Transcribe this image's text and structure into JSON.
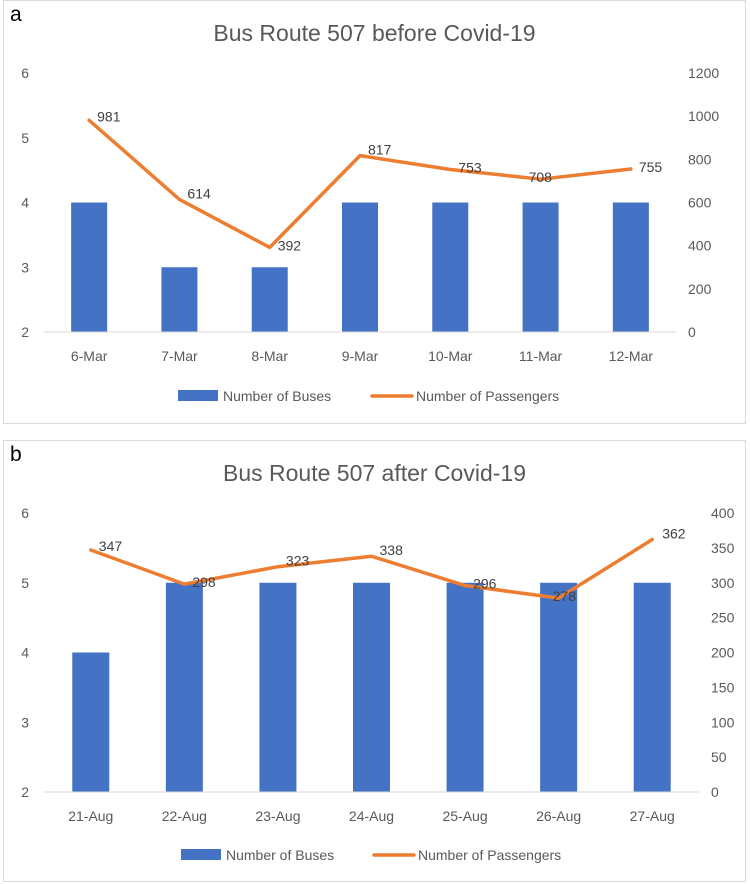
{
  "chart_data": [
    {
      "type": "bar",
      "panel_letter": "a",
      "title": "Bus Route 507 before Covid-19",
      "categories": [
        "6-Mar",
        "7-Mar",
        "8-Mar",
        "9-Mar",
        "10-Mar",
        "11-Mar",
        "12-Mar"
      ],
      "left_axis": {
        "ylim": [
          2,
          6
        ],
        "ticks": [
          2,
          3,
          4,
          5,
          6
        ]
      },
      "right_axis": {
        "ylim": [
          0,
          1200
        ],
        "ticks": [
          0,
          200,
          400,
          600,
          800,
          1000,
          1200
        ]
      },
      "series": [
        {
          "name": "Number of Buses",
          "kind": "bar",
          "axis": "left",
          "color": "#4472c4",
          "values": [
            4,
            3,
            3,
            4,
            4,
            4,
            4
          ]
        },
        {
          "name": "Number of Passengers",
          "kind": "line",
          "axis": "right",
          "color": "#ed7d31",
          "values": [
            981,
            614,
            392,
            817,
            753,
            708,
            755
          ]
        }
      ],
      "legend": "bottom",
      "grid": false
    },
    {
      "type": "bar",
      "panel_letter": "b",
      "title": "Bus Route 507 after Covid-19",
      "categories": [
        "21-Aug",
        "22-Aug",
        "23-Aug",
        "24-Aug",
        "25-Aug",
        "26-Aug",
        "27-Aug"
      ],
      "left_axis": {
        "ylim": [
          2,
          6
        ],
        "ticks": [
          2,
          3,
          4,
          5,
          6
        ]
      },
      "right_axis": {
        "ylim": [
          0,
          400
        ],
        "ticks": [
          0,
          50,
          100,
          150,
          200,
          250,
          300,
          350,
          400
        ]
      },
      "series": [
        {
          "name": "Number of Buses",
          "kind": "bar",
          "axis": "left",
          "color": "#4472c4",
          "values": [
            4,
            5,
            5,
            5,
            5,
            5,
            5
          ]
        },
        {
          "name": "Number of Passengers",
          "kind": "line",
          "axis": "right",
          "color": "#ed7d31",
          "values": [
            347,
            298,
            323,
            338,
            296,
            278,
            362
          ]
        }
      ],
      "legend": "bottom",
      "grid": false
    }
  ]
}
